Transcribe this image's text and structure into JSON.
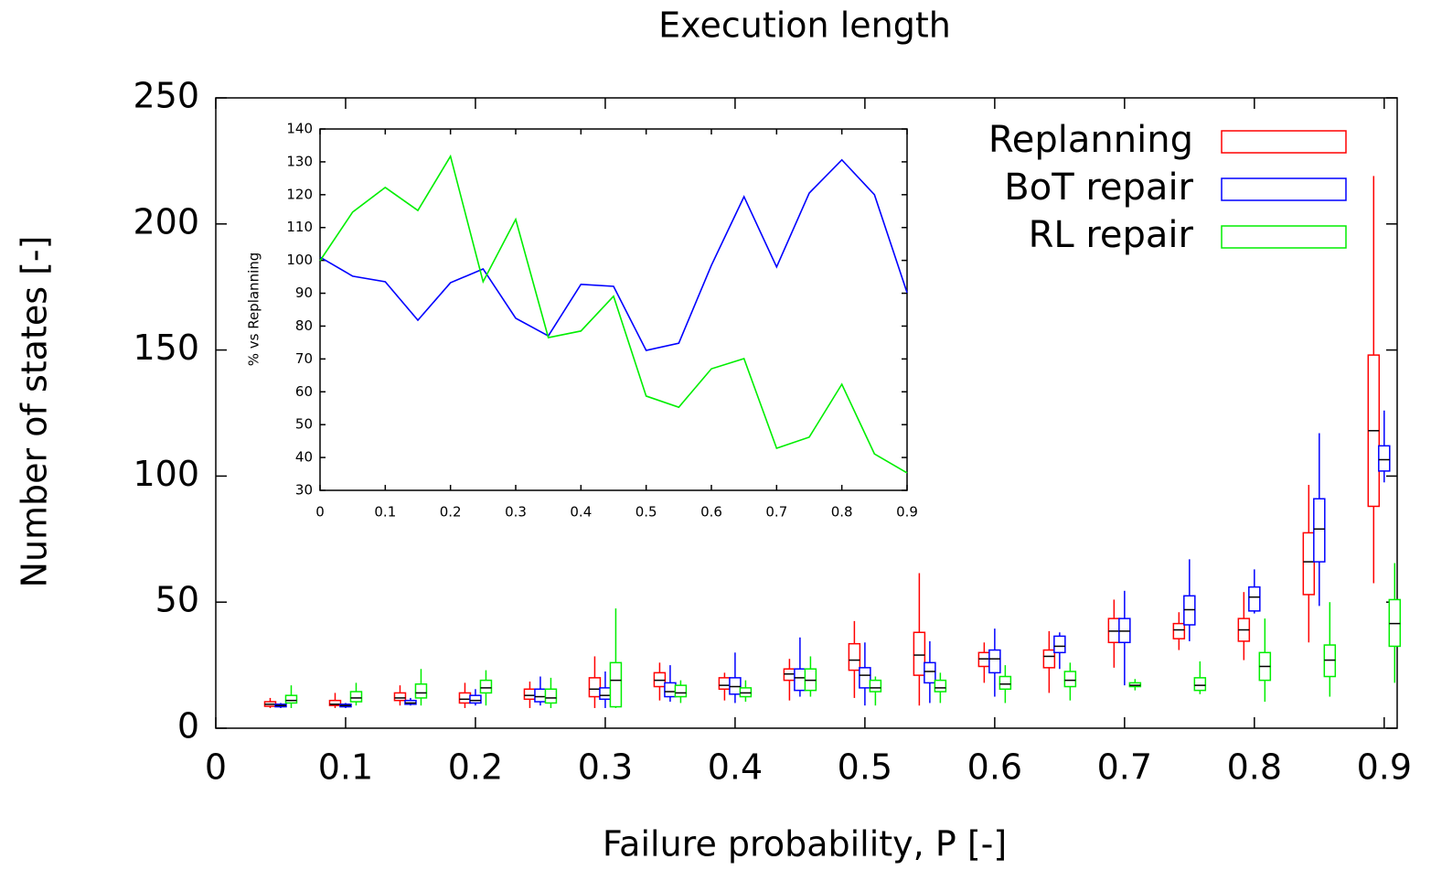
{
  "chart_data": [
    {
      "type": "box",
      "title": "Execution length",
      "x_label": "Failure probability, P [-]",
      "y_label": "Number of states   [-]",
      "x": [
        0.05,
        0.1,
        0.15,
        0.2,
        0.25,
        0.3,
        0.35,
        0.4,
        0.45,
        0.5,
        0.55,
        0.6,
        0.65,
        0.7,
        0.75,
        0.8,
        0.85,
        0.9
      ],
      "xlim": [
        0,
        0.91
      ],
      "xticks": [
        0,
        0.1,
        0.2,
        0.3,
        0.4,
        0.5,
        0.6,
        0.7,
        0.8,
        0.9
      ],
      "ylim": [
        0,
        250
      ],
      "yticks": [
        0,
        50,
        100,
        150,
        200,
        250
      ],
      "legend": "top right",
      "series": [
        {
          "name": "Replanning",
          "color": "#ff0000",
          "values": [
            [
              8,
              8.7,
              9.5,
              10.5,
              12
            ],
            [
              8,
              9,
              9.5,
              11,
              14
            ],
            [
              9,
              11,
              12,
              14,
              17
            ],
            [
              8,
              10,
              11.5,
              14,
              18
            ],
            [
              8,
              11.5,
              13,
              15.5,
              18.5
            ],
            [
              8,
              12.5,
              15.5,
              20,
              28.5
            ],
            [
              11,
              16.5,
              19,
              22,
              26
            ],
            [
              11,
              15.5,
              17,
              20,
              22
            ],
            [
              11,
              19,
              21.5,
              23.5,
              27.5
            ],
            [
              12,
              23,
              27,
              33.5,
              42.5
            ],
            [
              9,
              21,
              29,
              38,
              61.5
            ],
            [
              18,
              24.5,
              27.5,
              30,
              34
            ],
            [
              14,
              24,
              28.5,
              31,
              38.5
            ],
            [
              24,
              34,
              38.5,
              43.5,
              51
            ],
            [
              31,
              35.5,
              39,
              41.5,
              46
            ],
            [
              27,
              34.5,
              39,
              43.5,
              54
            ],
            [
              34,
              53,
              66,
              77.5,
              96.5
            ],
            [
              57.5,
              88,
              118,
              148,
              219
            ]
          ]
        },
        {
          "name": "BoT repair",
          "color": "#0000ff",
          "values": [
            [
              8,
              8.5,
              9,
              9.5,
              10
            ],
            [
              8,
              8.5,
              9,
              9.5,
              10
            ],
            [
              9,
              9.5,
              10,
              11,
              12
            ],
            [
              9,
              10,
              11,
              13,
              15.5
            ],
            [
              9,
              10.5,
              12.5,
              15.5,
              20.5
            ],
            [
              8,
              11.5,
              13,
              16,
              22.5
            ],
            [
              10.5,
              12.5,
              14.5,
              18,
              25
            ],
            [
              10,
              13.5,
              16.5,
              20,
              30
            ],
            [
              12.5,
              15,
              20,
              23.5,
              36
            ],
            [
              9,
              16,
              21,
              24,
              34
            ],
            [
              10,
              18,
              22.5,
              26,
              34.5
            ],
            [
              12.5,
              22,
              27.5,
              31,
              39.5
            ],
            [
              23.5,
              30,
              32.5,
              36.5,
              38
            ],
            [
              17,
              34,
              38.5,
              43.5,
              54.5
            ],
            [
              34.5,
              41,
              47,
              52.5,
              67
            ],
            [
              45.5,
              46.5,
              52,
              56,
              63
            ],
            [
              48.5,
              66,
              79,
              91,
              117
            ],
            [
              97.5,
              102,
              106.5,
              112,
              126
            ]
          ]
        },
        {
          "name": "RL repair",
          "color": "#00ee00",
          "values": [
            [
              8,
              10,
              11,
              13,
              17
            ],
            [
              9,
              10.5,
              12,
              14.5,
              18
            ],
            [
              9,
              12,
              14,
              17.5,
              23.5
            ],
            [
              9,
              14,
              16,
              19,
              23
            ],
            [
              8,
              10,
              12,
              15.5,
              20
            ],
            [
              8,
              8.5,
              19,
              26,
              47.5
            ],
            [
              10,
              12.5,
              14,
              17,
              19
            ],
            [
              10.5,
              12.5,
              14,
              16,
              19
            ],
            [
              12.5,
              15,
              19,
              23.5,
              28.5
            ],
            [
              9,
              14.5,
              16,
              19,
              20.5
            ],
            [
              10,
              14.5,
              16,
              19,
              22
            ],
            [
              10,
              15.5,
              17.5,
              20.5,
              25
            ],
            [
              11,
              16.5,
              19,
              22.5,
              26
            ],
            [
              15,
              16.5,
              17,
              18,
              19.5
            ],
            [
              13.5,
              15,
              17,
              20,
              26.5
            ],
            [
              10.5,
              19,
              24.5,
              30,
              43.5
            ],
            [
              12.5,
              20.5,
              27,
              33,
              50
            ],
            [
              18,
              32.5,
              41.5,
              51,
              65.5
            ]
          ]
        }
      ]
    },
    {
      "type": "line",
      "y_label": "% vs Replanning",
      "x": [
        0,
        0.05,
        0.1,
        0.15,
        0.2,
        0.25,
        0.3,
        0.35,
        0.4,
        0.45,
        0.5,
        0.55,
        0.6,
        0.65,
        0.7,
        0.75,
        0.8,
        0.85,
        0.9
      ],
      "xlim": [
        0,
        0.9
      ],
      "xticks": [
        0,
        0.1,
        0.2,
        0.3,
        0.4,
        0.5,
        0.6,
        0.7,
        0.8,
        0.9
      ],
      "ylim": [
        30,
        140
      ],
      "yticks": [
        30,
        40,
        50,
        60,
        70,
        80,
        90,
        100,
        110,
        120,
        130,
        140
      ],
      "series": [
        {
          "name": "BoT repair",
          "color": "#0000ff",
          "values": [
            101,
            95.2,
            93.5,
            81.8,
            93.2,
            97.4,
            82.4,
            77,
            92.7,
            92.1,
            72.6,
            74.8,
            98.5,
            119.4,
            98,
            120.5,
            130.6,
            120,
            90.2
          ]
        },
        {
          "name": "RL repair",
          "color": "#00ee00",
          "values": [
            99.9,
            114.7,
            122.2,
            115.2,
            131.7,
            93.5,
            112.5,
            76.5,
            78.5,
            89.1,
            58.7,
            55.3,
            67,
            70.1,
            42.8,
            46.2,
            62.3,
            41.1,
            35.3
          ]
        }
      ]
    }
  ]
}
